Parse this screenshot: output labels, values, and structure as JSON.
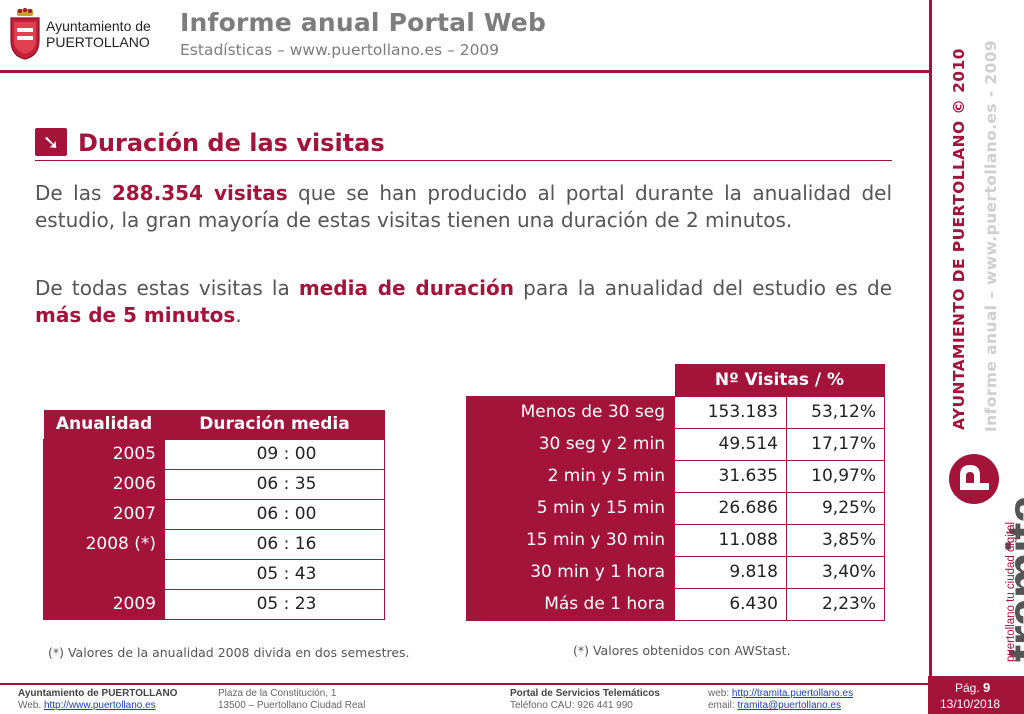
{
  "header": {
    "org_line1": "Ayuntamiento de",
    "org_line2": "PUERTOLLANO",
    "title": "Informe anual Portal Web",
    "subtitle": "Estadísticas – www.puertollano.es – 2009"
  },
  "side": {
    "vertical_text_main": "AYUNTAMIENTO DE PUERTOLLANO © 2010",
    "vertical_text_sub": "Informe anual – www.puertollano.es - 2009",
    "logo_word": "tramita",
    "logo_tagline": "puertollano tu ciudad digital"
  },
  "section": {
    "icon": "arrow-right-down-icon",
    "title": "Duración de las visitas"
  },
  "paragraphs": {
    "p1_a": "De las ",
    "p1_b": "288.354 visitas",
    "p1_c": " que se han producido al portal durante la anualidad del estudio, la gran mayoría de estas visitas tienen una duración de 2 minutos.",
    "p2_a": "De todas estas visitas la ",
    "p2_b": "media de duración",
    "p2_c": " para la anualidad del estudio es de ",
    "p2_d": "más de 5 minutos",
    "p2_e": "."
  },
  "annual_table": {
    "headers": [
      "Anualidad",
      "Duración media"
    ],
    "rows": [
      {
        "year": "2005",
        "duration": "09 :  00"
      },
      {
        "year": "2006",
        "duration": "06 :  35"
      },
      {
        "year": "2007",
        "duration": "06 :  00"
      },
      {
        "year": "2008 (*)",
        "duration": "06 :  16"
      },
      {
        "year": "",
        "duration": "05 :  43"
      },
      {
        "year": "2009",
        "duration": "05 :  23"
      }
    ],
    "note": "(*) Valores de la anualidad 2008 divida en dos semestres."
  },
  "visits_table": {
    "header": "Nº Visitas / %",
    "rows": [
      {
        "range": "Menos de 30 seg",
        "visits": "153.183",
        "pct": "53,12%"
      },
      {
        "range": "30 seg y 2 min",
        "visits": "49.514",
        "pct": "17,17%"
      },
      {
        "range": "2 min y 5 min",
        "visits": "31.635",
        "pct": "10,97%"
      },
      {
        "range": "5 min y 15 min",
        "visits": "26.686",
        "pct": "9,25%"
      },
      {
        "range": "15 min y 30 min",
        "visits": "11.088",
        "pct": "3,85%"
      },
      {
        "range": "30 min y 1 hora",
        "visits": "9.818",
        "pct": "3,40%"
      },
      {
        "range": "Más de 1 hora",
        "visits": "6.430",
        "pct": "2,23%"
      }
    ],
    "note": "(*) Valores obtenidos con AWStast."
  },
  "footer": {
    "col1_line1": "Ayuntamiento de PUERTOLLANO",
    "col1_line2_label": "Web. ",
    "col1_line2_link": "http://www.puertollano.es",
    "col2_line1": "Plaza de la Constitución, 1",
    "col2_line2": "13500 – Puertollano Ciudad Real",
    "col3_line1": "Portal de Servicios Telemáticos",
    "col3_line2": "Teléfono CAU: 926 441 990",
    "col4_line1_label": "web: ",
    "col4_line1_link": "http://tramita.puertollano.es",
    "col4_line2_label": "email: ",
    "col4_line2_link": "tramita@puertollano.es",
    "page_label": "Pág. ",
    "page_number": "9",
    "date": "13/10/2018"
  },
  "colors": {
    "accent": "#a3133a",
    "gray_title": "#7d7d7d"
  }
}
